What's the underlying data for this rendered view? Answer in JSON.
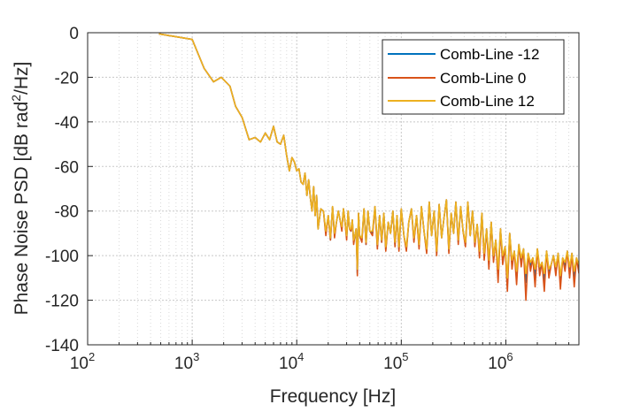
{
  "chart_data": {
    "type": "line",
    "xscale": "log",
    "xlim": [
      100,
      5000000
    ],
    "ylim": [
      -140,
      0
    ],
    "xlabel": "Frequency [Hz]",
    "ylabel_parts": [
      "Phase Noise PSD [dB rad",
      "2",
      "/Hz]"
    ],
    "x_ticks": [
      {
        "base": "10",
        "exp": "2",
        "value": 100
      },
      {
        "base": "10",
        "exp": "3",
        "value": 1000
      },
      {
        "base": "10",
        "exp": "4",
        "value": 10000
      },
      {
        "base": "10",
        "exp": "5",
        "value": 100000
      },
      {
        "base": "10",
        "exp": "6",
        "value": 1000000
      }
    ],
    "y_ticks": [
      {
        "label": "0",
        "value": 0
      },
      {
        "label": "-20",
        "value": -20
      },
      {
        "label": "-40",
        "value": -40
      },
      {
        "label": "-60",
        "value": -60
      },
      {
        "label": "-80",
        "value": -80
      },
      {
        "label": "-100",
        "value": -100
      },
      {
        "label": "-120",
        "value": -120
      },
      {
        "label": "-140",
        "value": -140
      }
    ],
    "grid": true,
    "legend_position": "top-right",
    "series": [
      {
        "name": "Comb-Line -12",
        "color": "#0072BD",
        "x": [
          480,
          1000,
          1300,
          1600,
          1900,
          2300,
          2600,
          3000,
          3500,
          4000,
          4500,
          5000,
          5500,
          6000,
          6500,
          7000,
          7500,
          8000,
          8500,
          9000,
          9500,
          10000,
          10500,
          11000,
          11500,
          12000,
          12500,
          13000,
          13500,
          14000,
          14500,
          15000,
          15500,
          16000,
          17000,
          18000,
          19000,
          20000,
          21000,
          22000,
          23000,
          24000,
          25000,
          26000,
          27000,
          28000,
          29000,
          30000,
          31000,
          32000,
          33000,
          34000,
          35000,
          36000,
          37000,
          38000,
          39000,
          40000,
          42000,
          44000,
          46000,
          48000,
          50000,
          53000,
          56000,
          59000,
          62000,
          65000,
          68000,
          71000,
          75000,
          79000,
          83000,
          87000,
          91000,
          95000,
          100000,
          106000,
          112000,
          118000,
          125000,
          132000,
          140000,
          148000,
          156000,
          165000,
          175000,
          185000,
          195000,
          206000,
          218000,
          230000,
          243000,
          256000,
          270000,
          285000,
          300000,
          316000,
          333000,
          351000,
          370000,
          390000,
          411000,
          433000,
          456000,
          480000,
          505000,
          532000,
          560000,
          590000,
          621000,
          654000,
          688000,
          724000,
          762000,
          802000,
          844000,
          888000,
          934000,
          983000,
          1034000,
          1088000,
          1145000,
          1205000,
          1268000,
          1334000,
          1404000,
          1477000,
          1554000,
          1635000,
          1720000,
          1810000,
          1904000,
          2003000,
          2107000,
          2217000,
          2332000,
          2453000,
          2581000,
          2715000,
          2856000,
          3005000,
          3161000,
          3326000,
          3499000,
          3681000,
          3873000,
          4074000,
          4286000,
          4509000,
          4744000,
          5000000
        ],
        "y": [
          -0.5,
          -3,
          -16,
          -22,
          -20,
          -24,
          -33,
          -38,
          -48,
          -47,
          -49,
          -45,
          -48,
          -42,
          -49,
          -50,
          -46,
          -55,
          -62,
          -56,
          -58,
          -62,
          -61,
          -67,
          -68,
          -63,
          -73,
          -66,
          -74,
          -80,
          -69,
          -82,
          -73,
          -88,
          -79,
          -80,
          -90,
          -82,
          -93,
          -78,
          -91,
          -85,
          -80,
          -84,
          -88,
          -79,
          -85,
          -92,
          -80,
          -88,
          -89,
          -84,
          -94,
          -91,
          -88,
          -108,
          -81,
          -91,
          -93,
          -79,
          -95,
          -80,
          -89,
          -90,
          -78,
          -96,
          -82,
          -94,
          -81,
          -97,
          -85,
          -90,
          -80,
          -95,
          -82,
          -97,
          -79,
          -91,
          -97,
          -85,
          -79,
          -93,
          -82,
          -96,
          -78,
          -89,
          -98,
          -76,
          -91,
          -80,
          -99,
          -77,
          -92,
          -83,
          -75,
          -98,
          -81,
          -90,
          -76,
          -94,
          -78,
          -89,
          -95,
          -76,
          -91,
          -80,
          -95,
          -86,
          -99,
          -81,
          -100,
          -88,
          -104,
          -85,
          -101,
          -93,
          -109,
          -88,
          -102,
          -96,
          -113,
          -90,
          -104,
          -98,
          -110,
          -95,
          -103,
          -97,
          -112,
          -99,
          -105,
          -101,
          -109,
          -97,
          -107,
          -103,
          -111,
          -98,
          -108,
          -104,
          -100,
          -107,
          -99,
          -112,
          -101,
          -105,
          -98,
          -107,
          -99,
          -110,
          -101,
          -106
        ]
      },
      {
        "name": "Comb-Line 0",
        "color": "#D95319",
        "x": [
          480,
          1000,
          1300,
          1600,
          1900,
          2300,
          2600,
          3000,
          3500,
          4000,
          4500,
          5000,
          5500,
          6000,
          6500,
          7000,
          7500,
          8000,
          8500,
          9000,
          9500,
          10000,
          10500,
          11000,
          11500,
          12000,
          12500,
          13000,
          13500,
          14000,
          14500,
          15000,
          15500,
          16000,
          17000,
          18000,
          19000,
          20000,
          21000,
          22000,
          23000,
          24000,
          25000,
          26000,
          27000,
          28000,
          29000,
          30000,
          31000,
          32000,
          33000,
          34000,
          35000,
          36000,
          37000,
          38000,
          39000,
          40000,
          42000,
          44000,
          46000,
          48000,
          50000,
          53000,
          56000,
          59000,
          62000,
          65000,
          68000,
          71000,
          75000,
          79000,
          83000,
          87000,
          91000,
          95000,
          100000,
          106000,
          112000,
          118000,
          125000,
          132000,
          140000,
          148000,
          156000,
          165000,
          175000,
          185000,
          195000,
          206000,
          218000,
          230000,
          243000,
          256000,
          270000,
          285000,
          300000,
          316000,
          333000,
          351000,
          370000,
          390000,
          411000,
          433000,
          456000,
          480000,
          505000,
          532000,
          560000,
          590000,
          621000,
          654000,
          688000,
          724000,
          762000,
          802000,
          844000,
          888000,
          934000,
          983000,
          1034000,
          1088000,
          1145000,
          1205000,
          1268000,
          1334000,
          1404000,
          1477000,
          1554000,
          1635000,
          1720000,
          1810000,
          1904000,
          2003000,
          2107000,
          2217000,
          2332000,
          2453000,
          2581000,
          2715000,
          2856000,
          3005000,
          3161000,
          3326000,
          3499000,
          3681000,
          3873000,
          4074000,
          4286000,
          4509000,
          4744000,
          5000000
        ],
        "y": [
          -0.5,
          -3,
          -16,
          -22,
          -20,
          -24,
          -33,
          -38,
          -48,
          -47,
          -49,
          -45,
          -48,
          -42,
          -49,
          -50,
          -46,
          -55,
          -62,
          -56,
          -58,
          -62,
          -61,
          -67,
          -68,
          -63,
          -73,
          -66,
          -74,
          -80,
          -69,
          -82,
          -73,
          -88,
          -79,
          -80,
          -91,
          -82,
          -93,
          -78,
          -92,
          -85,
          -80,
          -84,
          -89,
          -79,
          -85,
          -93,
          -80,
          -88,
          -89,
          -84,
          -95,
          -91,
          -88,
          -109,
          -81,
          -91,
          -94,
          -79,
          -95,
          -80,
          -89,
          -91,
          -78,
          -97,
          -82,
          -94,
          -81,
          -98,
          -85,
          -90,
          -80,
          -96,
          -82,
          -98,
          -79,
          -91,
          -98,
          -85,
          -79,
          -94,
          -82,
          -97,
          -78,
          -89,
          -99,
          -76,
          -91,
          -80,
          -100,
          -77,
          -92,
          -83,
          -75,
          -99,
          -81,
          -90,
          -76,
          -95,
          -78,
          -89,
          -96,
          -76,
          -91,
          -80,
          -96,
          -86,
          -101,
          -81,
          -102,
          -88,
          -106,
          -85,
          -103,
          -93,
          -112,
          -88,
          -104,
          -96,
          -116,
          -90,
          -106,
          -98,
          -113,
          -95,
          -105,
          -97,
          -120,
          -99,
          -107,
          -101,
          -114,
          -97,
          -109,
          -103,
          -116,
          -98,
          -110,
          -104,
          -100,
          -109,
          -99,
          -115,
          -101,
          -107,
          -98,
          -110,
          -99,
          -114,
          -101,
          -108
        ]
      },
      {
        "name": "Comb-Line 12",
        "color": "#EDB120",
        "x": [
          480,
          1000,
          1300,
          1600,
          1900,
          2300,
          2600,
          3000,
          3500,
          4000,
          4500,
          5000,
          5500,
          6000,
          6500,
          7000,
          7500,
          8000,
          8500,
          9000,
          9500,
          10000,
          10500,
          11000,
          11500,
          12000,
          12500,
          13000,
          13500,
          14000,
          14500,
          15000,
          15500,
          16000,
          17000,
          18000,
          19000,
          20000,
          21000,
          22000,
          23000,
          24000,
          25000,
          26000,
          27000,
          28000,
          29000,
          30000,
          31000,
          32000,
          33000,
          34000,
          35000,
          36000,
          37000,
          38000,
          39000,
          40000,
          42000,
          44000,
          46000,
          48000,
          50000,
          53000,
          56000,
          59000,
          62000,
          65000,
          68000,
          71000,
          75000,
          79000,
          83000,
          87000,
          91000,
          95000,
          100000,
          106000,
          112000,
          118000,
          125000,
          132000,
          140000,
          148000,
          156000,
          165000,
          175000,
          185000,
          195000,
          206000,
          218000,
          230000,
          243000,
          256000,
          270000,
          285000,
          300000,
          316000,
          333000,
          351000,
          370000,
          390000,
          411000,
          433000,
          456000,
          480000,
          505000,
          532000,
          560000,
          590000,
          621000,
          654000,
          688000,
          724000,
          762000,
          802000,
          844000,
          888000,
          934000,
          983000,
          1034000,
          1088000,
          1145000,
          1205000,
          1268000,
          1334000,
          1404000,
          1477000,
          1554000,
          1635000,
          1720000,
          1810000,
          1904000,
          2003000,
          2107000,
          2217000,
          2332000,
          2453000,
          2581000,
          2715000,
          2856000,
          3005000,
          3161000,
          3326000,
          3499000,
          3681000,
          3873000,
          4074000,
          4286000,
          4509000,
          4744000,
          5000000
        ],
        "y": [
          -0.5,
          -3,
          -16,
          -22,
          -20,
          -24,
          -33,
          -38,
          -48,
          -47,
          -49,
          -45,
          -48,
          -42,
          -49,
          -50,
          -46,
          -55,
          -62,
          -56,
          -58,
          -62,
          -61,
          -67,
          -68,
          -63,
          -73,
          -66,
          -74,
          -80,
          -69,
          -82,
          -73,
          -88,
          -79,
          -80,
          -89,
          -82,
          -92,
          -78,
          -90,
          -85,
          -80,
          -84,
          -87,
          -79,
          -85,
          -91,
          -80,
          -88,
          -88,
          -84,
          -93,
          -91,
          -88,
          -106,
          -81,
          -91,
          -92,
          -79,
          -94,
          -80,
          -89,
          -89,
          -78,
          -95,
          -82,
          -93,
          -81,
          -96,
          -85,
          -90,
          -80,
          -94,
          -82,
          -96,
          -79,
          -91,
          -96,
          -85,
          -79,
          -92,
          -82,
          -95,
          -78,
          -89,
          -97,
          -76,
          -91,
          -80,
          -98,
          -77,
          -92,
          -83,
          -75,
          -97,
          -81,
          -90,
          -76,
          -93,
          -78,
          -89,
          -94,
          -76,
          -91,
          -80,
          -94,
          -86,
          -98,
          -81,
          -99,
          -88,
          -102,
          -85,
          -100,
          -93,
          -106,
          -88,
          -100,
          -96,
          -110,
          -90,
          -102,
          -98,
          -107,
          -95,
          -101,
          -97,
          -108,
          -99,
          -103,
          -101,
          -106,
          -97,
          -105,
          -103,
          -108,
          -98,
          -106,
          -104,
          -100,
          -105,
          -99,
          -109,
          -101,
          -103,
          -98,
          -105,
          -99,
          -107,
          -101,
          -104
        ]
      }
    ]
  }
}
